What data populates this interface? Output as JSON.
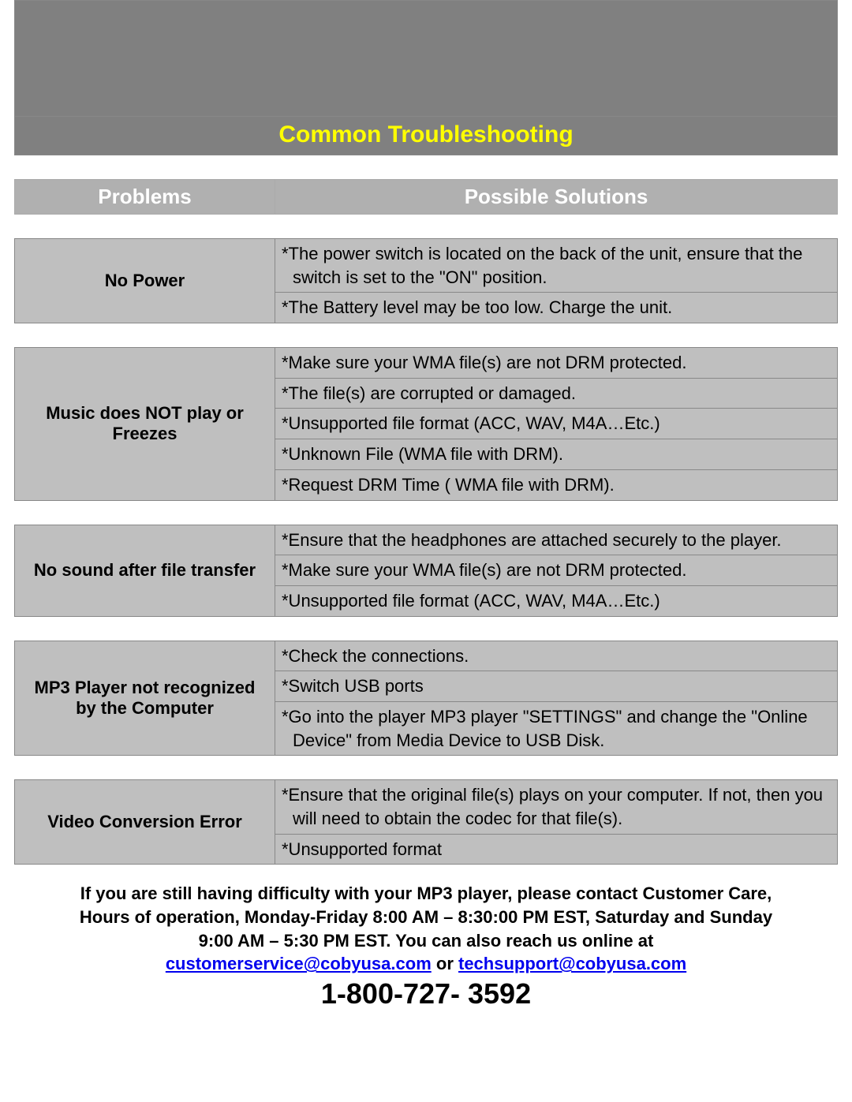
{
  "title": "Common Troubleshooting",
  "columns": {
    "left": "Problems",
    "right": "Possible Solutions"
  },
  "colors": {
    "header_bg": "#808080",
    "title_color": "#ffff00",
    "colhead_bg": "#b0b0b0",
    "colhead_text": "#ffffff",
    "cell_bg": "#bfbfbf",
    "text": "#000000",
    "link": "#0000ee",
    "border": "#888888"
  },
  "sections": [
    {
      "problem": "No Power",
      "solutions": [
        "*The power switch is located on the back of the unit, ensure that the switch is set to the \"ON\" position.",
        "*The Battery level may be too low. Charge the unit."
      ]
    },
    {
      "problem": "Music does NOT play  or Freezes",
      "solutions": [
        "*Make sure your WMA file(s) are not DRM protected.",
        "*The file(s) are corrupted or damaged.",
        "*Unsupported file format (ACC, WAV, M4A…Etc.)",
        "*Unknown File (WMA file with DRM).",
        "*Request DRM Time ( WMA file with DRM)."
      ]
    },
    {
      "problem": "No sound after file transfer",
      "solutions": [
        "*Ensure that the headphones are attached securely to the player.",
        "*Make sure your WMA file(s) are not DRM protected.",
        "*Unsupported file format (ACC, WAV, M4A…Etc.)"
      ]
    },
    {
      "problem": "MP3 Player not recognized by the Computer",
      "solutions": [
        "*Check the connections.",
        "*Switch USB ports",
        "*Go into the player MP3 player \"SETTINGS\" and change the \"Online Device\" from Media Device to USB Disk."
      ]
    },
    {
      "problem": "Video Conversion Error",
      "solutions": [
        "*Ensure that the original file(s) plays on your computer. If not, then you will need to obtain the codec for that file(s).",
        "*Unsupported format"
      ]
    }
  ],
  "footer": {
    "line1": "If you are still having difficulty with your MP3 player, please contact Customer Care,",
    "line2": "Hours of operation, Monday-Friday 8:00 AM – 8:30:00 PM EST, Saturday and Sunday",
    "line3": "9:00 AM – 5:30 PM EST. You can also reach us online at",
    "email1": "customerservice@cobyusa.com",
    "or": " or ",
    "email2": "techsupport@cobyusa.com",
    "phone": "1-800-727- 3592"
  }
}
